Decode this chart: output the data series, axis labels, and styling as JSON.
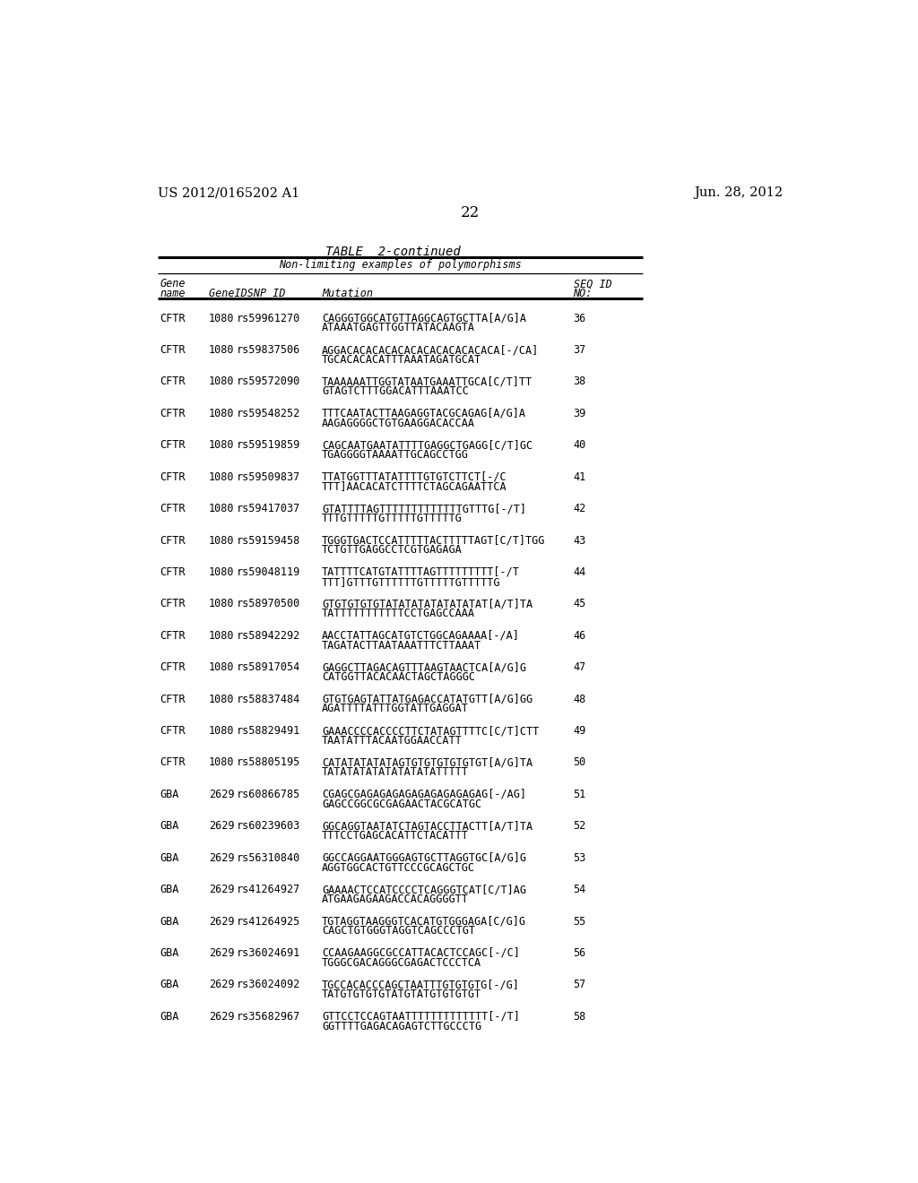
{
  "patent_left": "US 2012/0165202 A1",
  "patent_right": "Jun. 28, 2012",
  "page_number": "22",
  "table_title": "TABLE  2-continued",
  "subtitle": "Non-limiting examples of polymorphisms",
  "rows": [
    [
      "CFTR",
      "1080",
      "rs59961270",
      "CAGGGTGGCATGTTAGGCAGTGCTTA[A/G]A",
      "ATAAATGAGTTGGTTATACAAGTA",
      "36"
    ],
    [
      "CFTR",
      "1080",
      "rs59837506",
      "AGGACACACACACACACACACACACACA[-/CA]",
      "TGCACACACATTTAAATAGATGCAT",
      "37"
    ],
    [
      "CFTR",
      "1080",
      "rs59572090",
      "TAAAAAATTGGTATAATGAAATTGCA[C/T]TT",
      "GTAGTCTTTGGACATTTAAATCC",
      "38"
    ],
    [
      "CFTR",
      "1080",
      "rs59548252",
      "TTTCAATACTTAAGAGGTACGCAGAG[A/G]A",
      "AAGAGGGGCTGTGAAGGACACCAA",
      "39"
    ],
    [
      "CFTR",
      "1080",
      "rs59519859",
      "CAGCAATGAATATTTTGAGGCTGAGG[C/T]GC",
      "TGAGGGGTAAAATTGCAGCCTGG",
      "40"
    ],
    [
      "CFTR",
      "1080",
      "rs59509837",
      "TTATGGTTTATATTTTGTGTCTTCT[-/C",
      "TTT]AACACATCTTTTCTAGCAGAATTCA",
      "41"
    ],
    [
      "CFTR",
      "1080",
      "rs59417037",
      "GTATTTTAGTTTTTTTTTTTTTGTTTG[-/T]",
      "TTTGTTTTTGTTTTTGTTTTTG",
      "42"
    ],
    [
      "CFTR",
      "1080",
      "rs59159458",
      "TGGGTGACTCCATTTTTACTTTTTAGT[C/T]TGG",
      "TCTGTTGAGGCCTCGTGAGAGA",
      "43"
    ],
    [
      "CFTR",
      "1080",
      "rs59048119",
      "TATTTTCATGTATTTTAGTTTTTTTTT[-/T",
      "TTT]GTTTGTTTTTTGTTTTTGTTTTTG",
      "44"
    ],
    [
      "CFTR",
      "1080",
      "rs58970500",
      "GTGTGTGTGTATATATATATATATAT[A/T]TA",
      "TATTTTTTTTTTTCCTGAGCCAAA",
      "45"
    ],
    [
      "CFTR",
      "1080",
      "rs58942292",
      "AACCTATTAGCATGTCTGGCAGAAAA[-/A]",
      "TAGATACTTAATAAATTTCTTAAAT",
      "46"
    ],
    [
      "CFTR",
      "1080",
      "rs58917054",
      "GAGGCTTAGACAGTTTAAGTAACTCA[A/G]G",
      "CATGGTTACACAACTAGCTAGGGC",
      "47"
    ],
    [
      "CFTR",
      "1080",
      "rs58837484",
      "GTGTGAGTATTATGAGACCATATGTT[A/G]GG",
      "AGATTTTATTTGGTATTGAGGAT",
      "48"
    ],
    [
      "CFTR",
      "1080",
      "rs58829491",
      "GAAACCCCACCCCTTCTATAGTTTTC[C/T]CTT",
      "TAATATTTACAATGGAACCATT",
      "49"
    ],
    [
      "CFTR",
      "1080",
      "rs58805195",
      "CATATATATATAGTGTGTGTGTGTGT[A/G]TA",
      "TATATATATATATATATATTTTT",
      "50"
    ],
    [
      "GBA",
      "2629",
      "rs60866785",
      "CGAGCGAGAGAGAGAGAGAGAGAGAG[-/AG]",
      "GAGCCGGCGCGAGAACTACGCATGC",
      "51"
    ],
    [
      "GBA",
      "2629",
      "rs60239603",
      "GGCAGGTAATATCTAGTACCTTACTT[A/T]TA",
      "TTTCCTGAGCACATTCTACATTT",
      "52"
    ],
    [
      "GBA",
      "2629",
      "rs56310840",
      "GGCCAGGAATGGGAGTGCTTAGGTGC[A/G]G",
      "AGGTGGCACTGTTCCCGCAGCTGC",
      "53"
    ],
    [
      "GBA",
      "2629",
      "rs41264927",
      "GAAAACTCCATCCCCTCAGGGTCAT[C/T]AG",
      "ATGAAGAGAAGACCACAGGGGTT",
      "54"
    ],
    [
      "GBA",
      "2629",
      "rs41264925",
      "TGTAGGTAAGGGTCACATGTGGGAGA[C/G]G",
      "CAGCTGTGGGTAGGTCAGCCCTGT",
      "55"
    ],
    [
      "GBA",
      "2629",
      "rs36024691",
      "CCAAGAAGGCGCCATTACACTCCAGC[-/C]",
      "TGGGCGACAGGGCGAGACTCCCTCA",
      "56"
    ],
    [
      "GBA",
      "2629",
      "rs36024092",
      "TGCCACACCCAGCTAATTTGTGTGTG[-/G]",
      "TATGTGTGTGTATGTATGTGTGTGT",
      "57"
    ],
    [
      "GBA",
      "2629",
      "rs35682967",
      "GTTCCTCCAGTAATTTTTTTTTTTTT[-/T]",
      "GGTTTTGAGACAGAGTCTTGCCCTG",
      "58"
    ]
  ]
}
